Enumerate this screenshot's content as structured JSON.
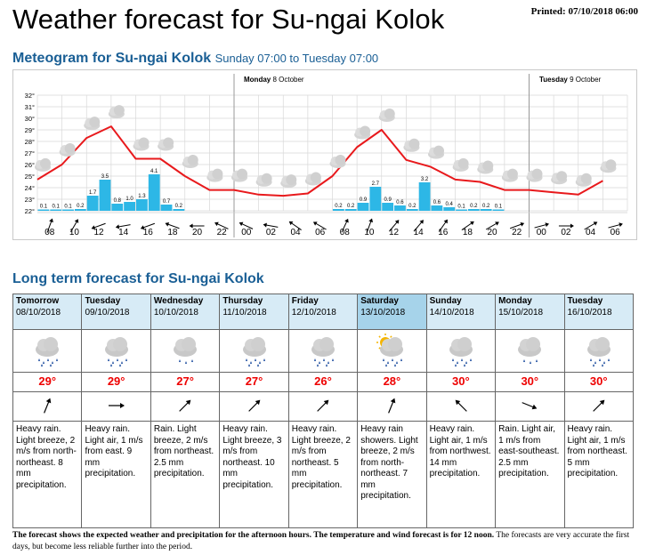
{
  "header": {
    "title": "Weather forecast for Su-ngai Kolok",
    "printed": "Printed: 07/10/2018 06:00"
  },
  "meteogram": {
    "title": "Meteogram for Su-ngai Kolok",
    "range": "Sunday 07:00 to Tuesday 07:00",
    "day_labels": [
      {
        "day": "Monday",
        "date": "8 October"
      },
      {
        "day": "Tuesday",
        "date": "9 October"
      }
    ]
  },
  "chart_data": {
    "type": "line",
    "y_ticks": [
      "32°",
      "31°",
      "30°",
      "29°",
      "28°",
      "27°",
      "26°",
      "25°",
      "24°",
      "23°",
      "22°"
    ],
    "ylim": [
      22,
      32
    ],
    "x_ticks": [
      "08",
      "10",
      "12",
      "14",
      "16",
      "18",
      "20",
      "22",
      "00",
      "02",
      "04",
      "06",
      "08",
      "10",
      "12",
      "14",
      "16",
      "18",
      "20",
      "22",
      "00",
      "02",
      "04",
      "06"
    ],
    "series": [
      {
        "values": [
          24.7,
          26.0,
          28.3,
          29.3,
          26.5,
          26.5,
          25.0,
          23.8,
          23.8,
          23.4,
          23.3,
          23.5,
          25.0,
          27.5,
          29.0,
          26.4,
          25.8,
          24.7,
          24.5,
          23.8,
          23.8,
          23.6,
          23.4,
          24.6
        ]
      }
    ],
    "precipitation": [
      {
        "x": "08",
        "value": 0.1
      },
      {
        "x": "08",
        "value": 0.1
      },
      {
        "x": "10",
        "value": 0.1
      },
      {
        "x": "10",
        "value": 0.2
      },
      {
        "x": "12",
        "value": 1.7
      },
      {
        "x": "12",
        "value": 3.5
      },
      {
        "x": "14",
        "value": 0.8
      },
      {
        "x": "14",
        "value": 1.0
      },
      {
        "x": "16",
        "value": 1.3
      },
      {
        "x": "16",
        "value": 4.1
      },
      {
        "x": "18",
        "value": 0.7
      },
      {
        "x": "18",
        "value": 0.2
      },
      {
        "x": "08",
        "value": 0.2
      },
      {
        "x": "08",
        "value": 0.2
      },
      {
        "x": "10",
        "value": 0.9
      },
      {
        "x": "10",
        "value": 2.7
      },
      {
        "x": "12",
        "value": 0.9
      },
      {
        "x": "12",
        "value": 0.6
      },
      {
        "x": "14",
        "value": 0.2
      },
      {
        "x": "14",
        "value": 3.2
      },
      {
        "x": "16",
        "value": 0.6
      },
      {
        "x": "16",
        "value": 0.4
      },
      {
        "x": "18",
        "value": 0.1
      },
      {
        "x": "18",
        "value": 0.2
      },
      {
        "x": "20",
        "value": 0.2
      },
      {
        "x": "20",
        "value": 0.1
      }
    ],
    "precip_labels": [
      "0.1",
      "0.1",
      "0.1",
      "0.2",
      "1.7",
      "3.5",
      "0.8",
      "1.0",
      "1.3",
      "4.1",
      "0.7",
      "0.2",
      "0.2",
      "0.2",
      "0.9",
      "2.7",
      "0.9",
      "0.6",
      "0.2",
      "3.2",
      "0.6",
      "0.4",
      "0.1",
      "0.2",
      "0.2",
      "0.1"
    ],
    "colors": {
      "temperature": "#e8191c",
      "precipitation": "#2db7e6",
      "grid": "#d8d8d8"
    },
    "grid": true
  },
  "long_term": {
    "title": "Long term forecast for Su-ngai Kolok",
    "days": [
      {
        "day": "Tomorrow",
        "date": "08/10/2018",
        "icon": "cloud-rain-icon",
        "temp": "29°",
        "wind_dir": "north-northeast",
        "desc": "Heavy rain. Light breeze, 2 m/s from north-northeast. 8 mm precipitation.",
        "selected": false
      },
      {
        "day": "Tuesday",
        "date": "09/10/2018",
        "icon": "cloud-rain-icon",
        "temp": "29°",
        "wind_dir": "east",
        "desc": "Heavy rain. Light air, 1 m/s from east. 9 mm precipitation.",
        "selected": false
      },
      {
        "day": "Wednesday",
        "date": "10/10/2018",
        "icon": "cloud-rain-light-icon",
        "temp": "27°",
        "wind_dir": "northeast",
        "desc": "Rain. Light breeze, 2 m/s from northeast. 2.5 mm precipitation.",
        "selected": false
      },
      {
        "day": "Thursday",
        "date": "11/10/2018",
        "icon": "cloud-rain-icon",
        "temp": "27°",
        "wind_dir": "northeast",
        "desc": "Heavy rain. Light breeze, 3 m/s from northeast. 10 mm precipitation.",
        "selected": false
      },
      {
        "day": "Friday",
        "date": "12/10/2018",
        "icon": "cloud-rain-icon",
        "temp": "26°",
        "wind_dir": "northeast",
        "desc": "Heavy rain. Light breeze, 2 m/s from northeast. 5 mm precipitation.",
        "selected": false
      },
      {
        "day": "Saturday",
        "date": "13/10/2018",
        "icon": "sun-cloud-rain-icon",
        "temp": "28°",
        "wind_dir": "north-northeast",
        "desc": "Heavy rain showers. Light breeze, 2 m/s from north-northeast. 7 mm precipitation.",
        "selected": true
      },
      {
        "day": "Sunday",
        "date": "14/10/2018",
        "icon": "cloud-rain-icon",
        "temp": "30°",
        "wind_dir": "northwest",
        "desc": "Heavy rain. Light air, 1 m/s from northwest. 14 mm precipitation.",
        "selected": false
      },
      {
        "day": "Monday",
        "date": "15/10/2018",
        "icon": "cloud-rain-light-icon",
        "temp": "30°",
        "wind_dir": "east-southeast",
        "desc": "Rain. Light air, 1 m/s from east-southeast. 2.5 mm precipitation.",
        "selected": false
      },
      {
        "day": "Tuesday",
        "date": "16/10/2018",
        "icon": "cloud-rain-icon",
        "temp": "30°",
        "wind_dir": "northeast",
        "desc": "Heavy rain. Light air, 1 m/s from northeast. 5 mm precipitation.",
        "selected": false
      }
    ]
  },
  "footnote": {
    "bold": "The forecast shows the expected weather and precipitation for the afternoon hours. The temperature and wind forecast is for 12 noon.",
    "normal": " The forecasts are very accurate the first days, but become less reliable further into the period."
  }
}
